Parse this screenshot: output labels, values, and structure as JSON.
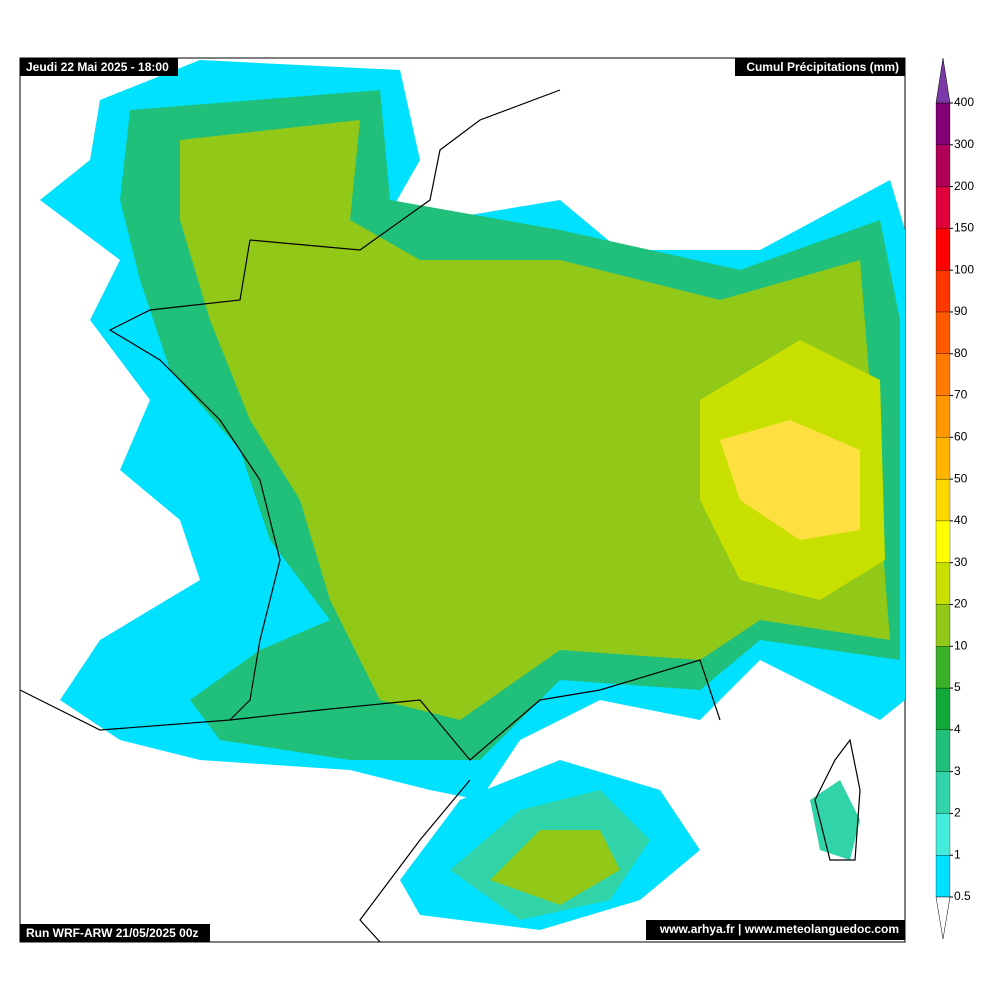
{
  "header": {
    "left": "Jeudi 22 Mai 2025 - 18:00",
    "right": "Cumul Précipitations (mm)"
  },
  "footer": {
    "left": "Run WRF-ARW 21/05/2025 00z",
    "right": "www.arhya.fr | www.meteolanguedoc.com"
  },
  "colorbar": {
    "levels": [
      0.5,
      1,
      2,
      3,
      4,
      5,
      10,
      20,
      30,
      40,
      50,
      60,
      70,
      80,
      90,
      100,
      150,
      200,
      300,
      400
    ],
    "colors": [
      "#00e0ff",
      "#44ecdc",
      "#30d4a8",
      "#20c07a",
      "#10a838",
      "#3ab028",
      "#92c818",
      "#c8e000",
      "#ffff00",
      "#ffd800",
      "#ffb400",
      "#ff9800",
      "#ff7a00",
      "#ff5a00",
      "#ff3600",
      "#ff0000",
      "#e0003a",
      "#b00058",
      "#820078"
    ],
    "over_color": "#7a3aa8",
    "under_color": "#ffffff"
  }
}
